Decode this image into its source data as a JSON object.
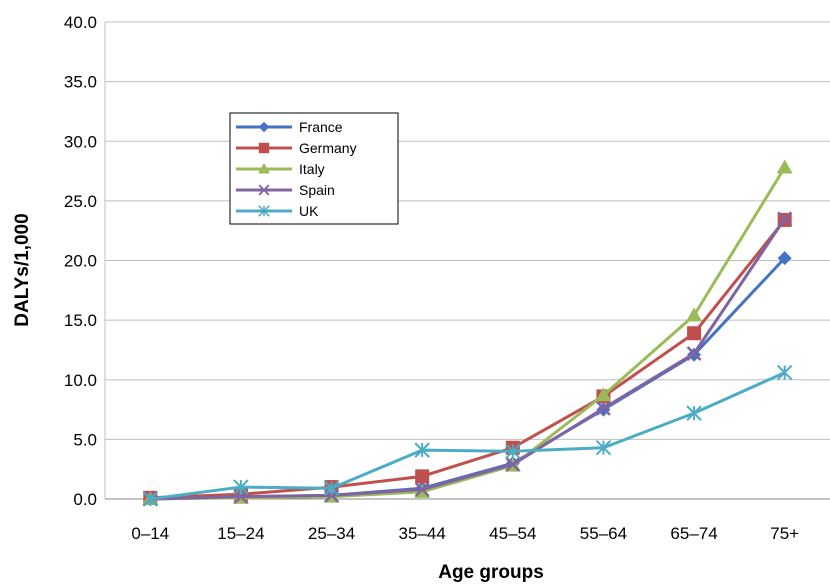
{
  "chart_data": {
    "type": "line",
    "title": "",
    "xlabel": "Age groups",
    "ylabel": "DALYs/1,000",
    "categories": [
      "0–14",
      "15–24",
      "25–34",
      "35–44",
      "45–54",
      "55–64",
      "65–74",
      "75+"
    ],
    "ylim": [
      0,
      40
    ],
    "yticks": [
      "0.0",
      "5.0",
      "10.0",
      "15.0",
      "20.0",
      "25.0",
      "30.0",
      "35.0",
      "40.0"
    ],
    "grid": true,
    "legend_position": "upper-left",
    "series": [
      {
        "name": "France",
        "color": "#4472c4",
        "marker": "diamond",
        "values": [
          0.0,
          0.2,
          0.3,
          0.9,
          3.0,
          7.5,
          12.1,
          20.2
        ]
      },
      {
        "name": "Germany",
        "color": "#c0504d",
        "marker": "square",
        "values": [
          0.1,
          0.4,
          1.0,
          1.9,
          4.3,
          8.6,
          13.9,
          23.4
        ]
      },
      {
        "name": "Italy",
        "color": "#9bbb59",
        "marker": "triangle",
        "values": [
          0.0,
          0.1,
          0.2,
          0.6,
          2.8,
          8.7,
          15.4,
          27.8
        ]
      },
      {
        "name": "Spain",
        "color": "#8064a2",
        "marker": "x",
        "values": [
          0.0,
          0.2,
          0.3,
          0.8,
          2.9,
          7.6,
          12.2,
          23.5
        ]
      },
      {
        "name": "UK",
        "color": "#4bacc6",
        "marker": "asterisk",
        "values": [
          0.0,
          1.0,
          0.9,
          4.1,
          4.0,
          4.3,
          7.2,
          10.6
        ]
      }
    ]
  }
}
